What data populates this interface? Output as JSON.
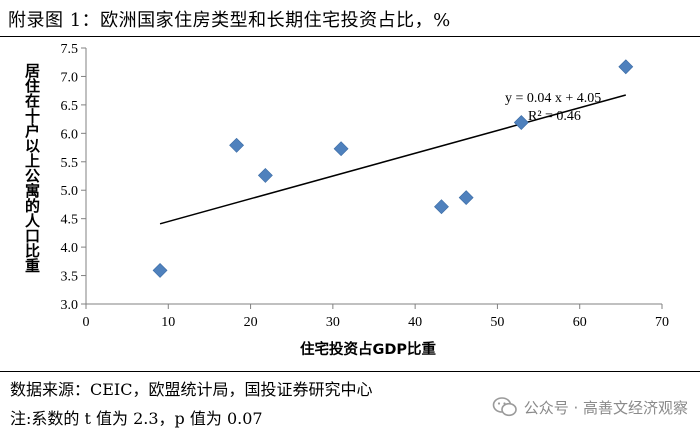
{
  "title": "附录图 1：欧洲国家住房类型和长期住宅投资占比，%",
  "source_note": "数据来源：CEIC，欧盟统计局，国投证券研究中心",
  "footnote": "注:系数的 t 值为 2.3，p 值为 0.07",
  "watermark": "公众号 · 高善文经济观察",
  "colors": {
    "marker": "#4f81bd",
    "trendline": "#000000",
    "axis": "#808080"
  },
  "chart_data": {
    "type": "scatter",
    "xlabel": "住宅投资占GDP比重",
    "ylabel": "居住在十户以上公寓的人口比重",
    "xlim": [
      0,
      70
    ],
    "ylim": [
      3.0,
      7.5
    ],
    "xticks": [
      0,
      10,
      20,
      30,
      40,
      50,
      60,
      70
    ],
    "yticks": [
      3.0,
      3.5,
      4.0,
      4.5,
      5.0,
      5.5,
      6.0,
      6.5,
      7.0,
      7.5
    ],
    "xtick_labels": [
      "0",
      "10",
      "20",
      "30",
      "40",
      "50",
      "60",
      "70"
    ],
    "ytick_labels": [
      "3.0",
      "3.5",
      "4.0",
      "4.5",
      "5.0",
      "5.5",
      "6.0",
      "6.5",
      "7.0",
      "7.5"
    ],
    "grid": false,
    "marker": "diamond",
    "points": [
      {
        "x": 9.0,
        "y": 3.59
      },
      {
        "x": 18.3,
        "y": 5.79
      },
      {
        "x": 21.8,
        "y": 5.26
      },
      {
        "x": 31.0,
        "y": 5.73
      },
      {
        "x": 43.2,
        "y": 4.71
      },
      {
        "x": 46.2,
        "y": 4.87
      },
      {
        "x": 52.9,
        "y": 6.19
      },
      {
        "x": 65.6,
        "y": 7.17
      }
    ],
    "trendline": {
      "slope": 0.04,
      "intercept": 4.05,
      "x_range": [
        9.0,
        65.6
      ],
      "equation": "y = 0.04 x + 4.05",
      "r_squared": "R² = 0.46"
    }
  }
}
